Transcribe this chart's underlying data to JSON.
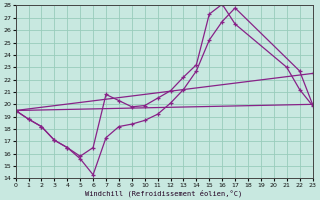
{
  "background_color": "#c8e8e0",
  "line_color": "#882288",
  "grid_color": "#99ccbb",
  "xlim": [
    0,
    23
  ],
  "ylim": [
    14,
    28
  ],
  "xticks": [
    0,
    1,
    2,
    3,
    4,
    5,
    6,
    7,
    8,
    9,
    10,
    11,
    12,
    13,
    14,
    15,
    16,
    17,
    18,
    19,
    20,
    21,
    22,
    23
  ],
  "yticks": [
    14,
    15,
    16,
    17,
    18,
    19,
    20,
    21,
    22,
    23,
    24,
    25,
    26,
    27,
    28
  ],
  "xlabel": "Windchill (Refroidissement éolien,°C)",
  "lines": [
    {
      "x": [
        0,
        1,
        2,
        3,
        4,
        5,
        6,
        7,
        8,
        9,
        10,
        11,
        12,
        13,
        14,
        15,
        16,
        17,
        22,
        23
      ],
      "y": [
        19.5,
        18.8,
        18.2,
        17.1,
        16.5,
        15.6,
        14.3,
        17.3,
        18.2,
        18.4,
        18.7,
        19.2,
        20.1,
        21.2,
        22.7,
        25.2,
        26.7,
        27.8,
        22.7,
        20.0
      ]
    },
    {
      "x": [
        0,
        1,
        2,
        3,
        4,
        5,
        6,
        7,
        8,
        9,
        10,
        11,
        12,
        13,
        14,
        15,
        16,
        17,
        21,
        22,
        23
      ],
      "y": [
        19.5,
        18.8,
        18.2,
        17.1,
        16.5,
        15.8,
        16.5,
        20.8,
        20.3,
        19.8,
        19.9,
        20.5,
        21.1,
        22.2,
        23.2,
        27.3,
        28.1,
        26.5,
        23.0,
        21.2,
        19.9
      ]
    },
    {
      "x": [
        0,
        23
      ],
      "y": [
        19.5,
        20.0
      ]
    },
    {
      "x": [
        0,
        23
      ],
      "y": [
        19.5,
        22.5
      ]
    }
  ]
}
